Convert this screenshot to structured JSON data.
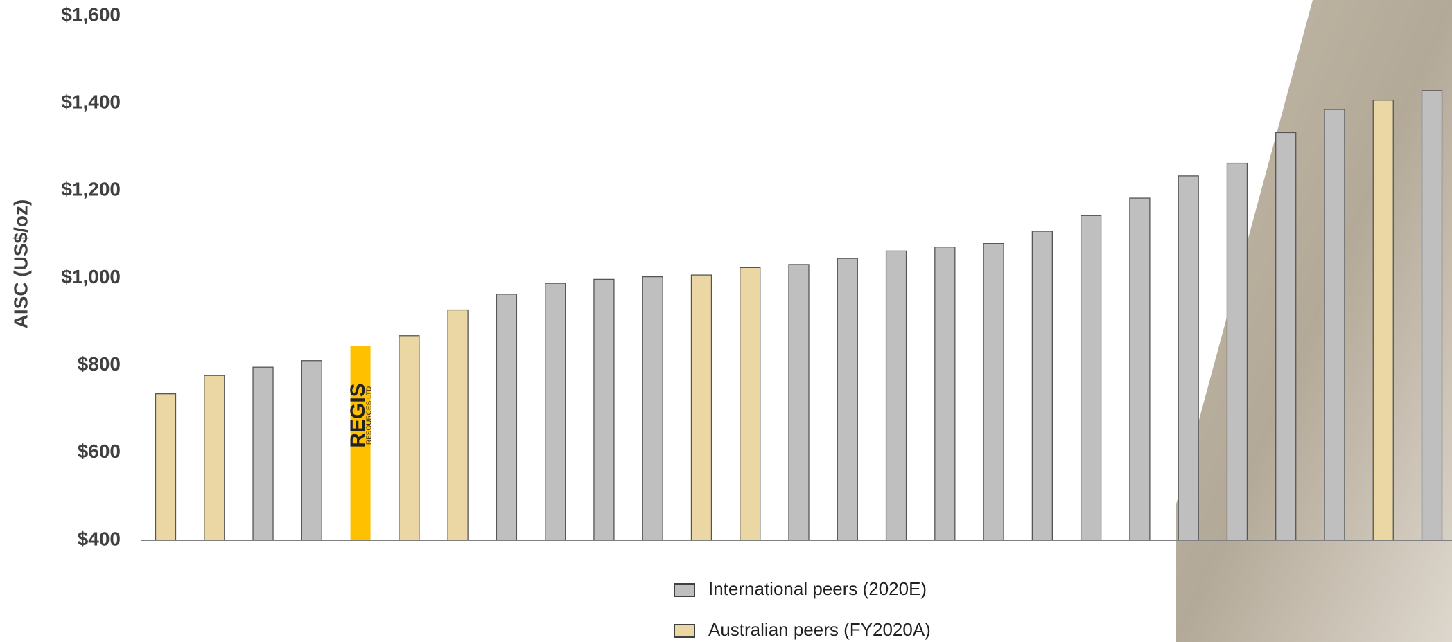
{
  "chart_data": {
    "type": "bar",
    "y_label": "AISC (US$/oz)",
    "categories": [
      null,
      null,
      null,
      null,
      null,
      null,
      null,
      null,
      null,
      null,
      null,
      null,
      null,
      null,
      null,
      null,
      null,
      null,
      null,
      null,
      null,
      null,
      null,
      null,
      null,
      null,
      null
    ],
    "values": [
      735,
      777,
      796,
      811,
      844,
      868,
      927,
      963,
      988,
      997,
      1003,
      1007,
      1024,
      1031,
      1045,
      1062,
      1071,
      1079,
      1107,
      1143,
      1183,
      1234,
      1263,
      1333,
      1386,
      1407,
      1429
    ],
    "colors": [
      "#EAD7A4",
      "#EAD7A4",
      "#BFBFBF",
      "#BFBFBF",
      "#FFC000",
      "#EAD7A4",
      "#EAD7A4",
      "#BFBFBF",
      "#BFBFBF",
      "#BFBFBF",
      "#BFBFBF",
      "#EAD7A4",
      "#EAD7A4",
      "#BFBFBF",
      "#BFBFBF",
      "#BFBFBF",
      "#BFBFBF",
      "#BFBFBF",
      "#BFBFBF",
      "#BFBFBF",
      "#BFBFBF",
      "#BFBFBF",
      "#BFBFBF",
      "#BFBFBF",
      "#BFBFBF",
      "#EAD7A4",
      "#BFBFBF"
    ],
    "highlight_index": 4,
    "highlight_text": [
      "REGIS",
      "RESOURCES LTD"
    ],
    "legend": [
      {
        "name": "International peers (2020E)",
        "color": "#BFBFBF"
      },
      {
        "name": "Australian peers (FY2020A)",
        "color": "#EAD7A4"
      }
    ],
    "ylim": [
      400,
      1600
    ],
    "yticks": [
      {
        "value": 400,
        "label": "$400"
      },
      {
        "value": 600,
        "label": "$600"
      },
      {
        "value": 800,
        "label": "$800"
      },
      {
        "value": 1000,
        "label": "$1,000"
      },
      {
        "value": 1200,
        "label": "$1,200"
      },
      {
        "value": 1400,
        "label": "$1,400"
      },
      {
        "value": 1600,
        "label": "$1,600"
      }
    ]
  }
}
